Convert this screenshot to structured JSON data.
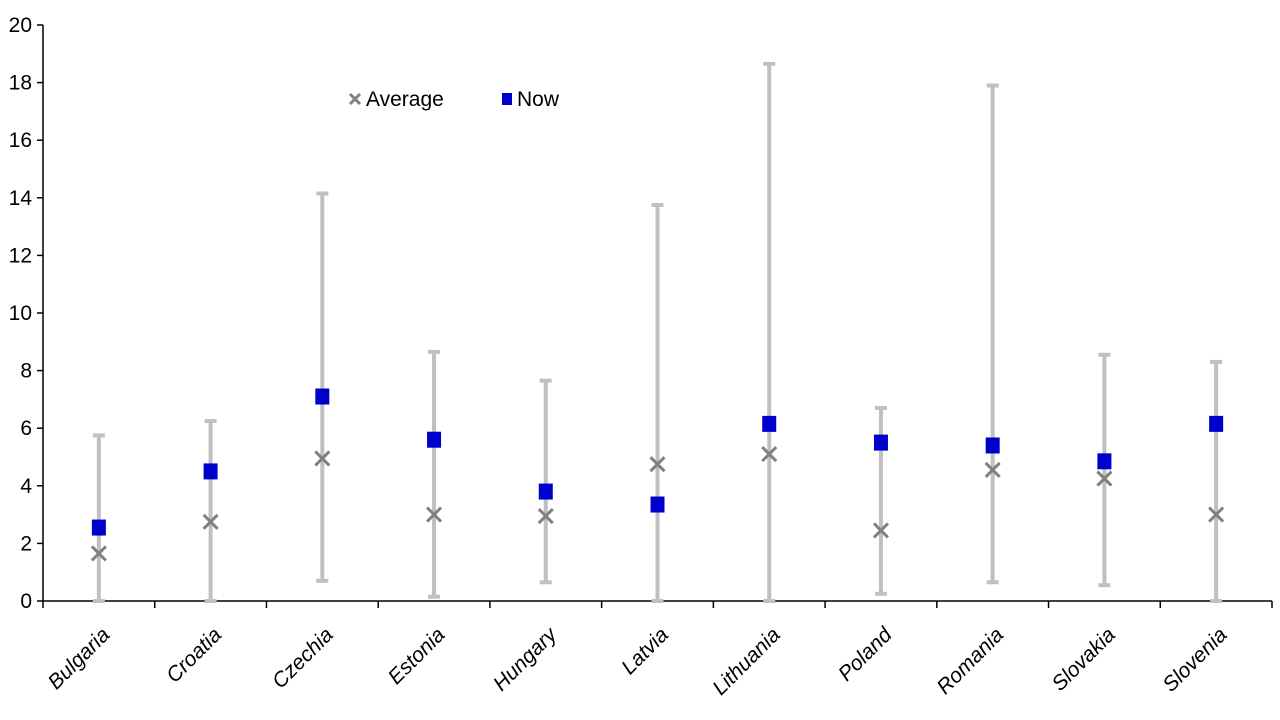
{
  "chart_data": {
    "type": "scatter",
    "title": "",
    "xlabel": "",
    "ylabel": "",
    "ylim": [
      0,
      20
    ],
    "yticks": [
      0,
      2,
      4,
      6,
      8,
      10,
      12,
      14,
      16,
      18,
      20
    ],
    "grid": false,
    "legend_position": "top-left",
    "categories": [
      "Bulgaria",
      "Croatia",
      "Czechia",
      "Estonia",
      "Hungary",
      "Latvia",
      "Lithuania",
      "Poland",
      "Romania",
      "Slovakia",
      "Slovenia"
    ],
    "range": {
      "min": [
        0.0,
        0.0,
        0.7,
        0.15,
        0.65,
        0.0,
        0.0,
        0.25,
        0.65,
        0.55,
        0.0
      ],
      "max": [
        5.75,
        6.25,
        14.15,
        8.65,
        7.65,
        13.75,
        18.65,
        6.7,
        17.9,
        8.55,
        8.3
      ],
      "color": "#c0c0c0"
    },
    "series": [
      {
        "name": "Average",
        "marker": "x",
        "color": "#808080",
        "values": [
          1.65,
          2.75,
          4.95,
          3.0,
          2.95,
          4.75,
          5.1,
          2.45,
          4.55,
          4.25,
          3.0
        ]
      },
      {
        "name": "Now",
        "marker": "square",
        "color": "#0000cc",
        "values": [
          2.55,
          4.5,
          7.1,
          5.6,
          3.8,
          3.35,
          6.15,
          5.5,
          5.4,
          4.85,
          6.15
        ]
      }
    ]
  }
}
